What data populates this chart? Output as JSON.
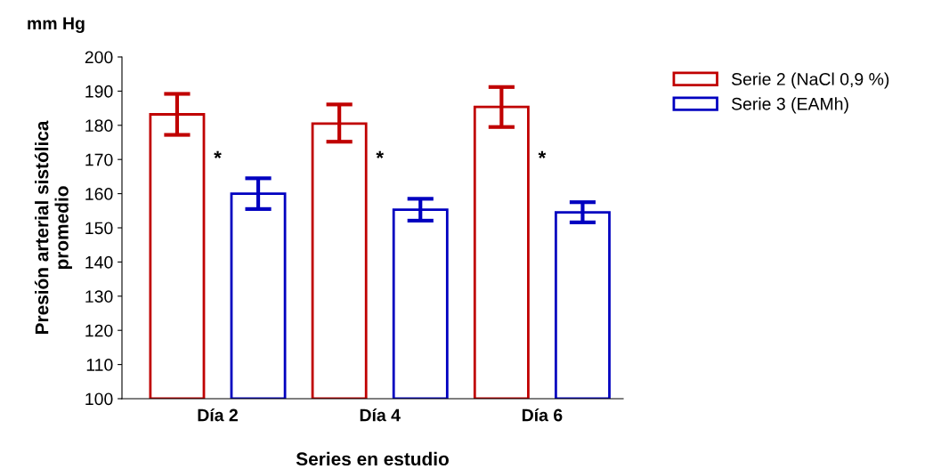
{
  "chart_data": {
    "type": "bar",
    "xlabel": "Series en estudio",
    "ylabel": "Presión arterial sistólica\npromedio",
    "categories": [
      "Día 2",
      "Día 4",
      "Día 6"
    ],
    "series": [
      {
        "name": "Serie 2 (NaCl 0,9 %)",
        "color": "#c00000",
        "values": [
          183.2,
          180.5,
          185.4
        ],
        "errors": [
          [
            177.2,
            189.2
          ],
          [
            175.2,
            186.1
          ],
          [
            179.5,
            191.2
          ]
        ]
      },
      {
        "name": "Serie 3 (EAMh)",
        "color": "#0000c0",
        "values": [
          160.0,
          155.3,
          154.5
        ],
        "errors": [
          [
            155.5,
            164.5
          ],
          [
            152.1,
            158.5
          ],
          [
            151.6,
            157.5
          ]
        ]
      }
    ],
    "ylim": [
      100,
      200
    ],
    "yticks": [
      100,
      110,
      120,
      130,
      140,
      150,
      160,
      170,
      180,
      190,
      200
    ],
    "annotations": [
      "mm Hg",
      "*",
      "*",
      "*"
    ],
    "legend": "right",
    "grid": false
  }
}
